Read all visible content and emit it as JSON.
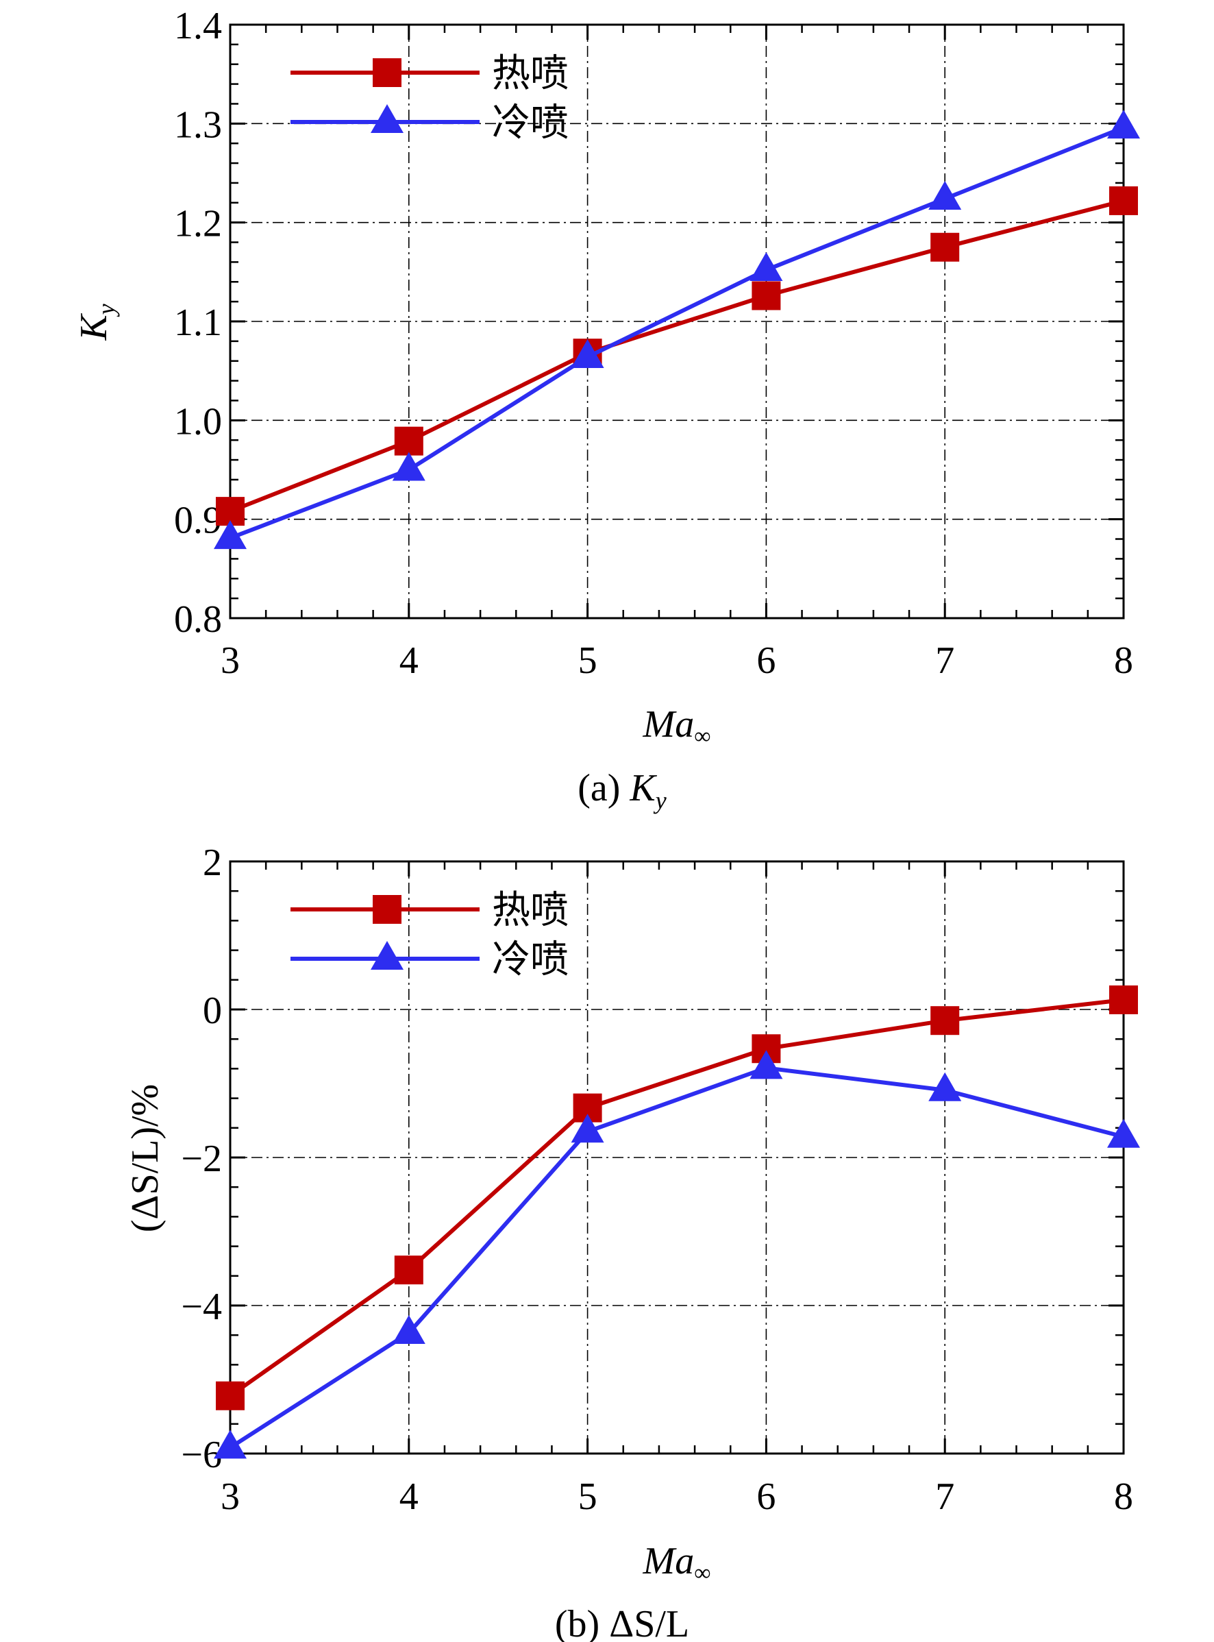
{
  "chart_data": [
    {
      "type": "line",
      "panel_label": "(a) ",
      "panel_symbol": "K",
      "panel_symbol_sub": "y",
      "xlabel_main": "Ma",
      "xlabel_sub": "∞",
      "ylabel_main": "K",
      "ylabel_sub": "y",
      "x": [
        3,
        4,
        5,
        6,
        7,
        8
      ],
      "xlim": [
        3,
        8
      ],
      "ylim": [
        0.8,
        1.4
      ],
      "x_ticks": [
        3,
        4,
        5,
        6,
        7,
        8
      ],
      "y_ticks": [
        0.8,
        0.9,
        1.0,
        1.1,
        1.2,
        1.3,
        1.4
      ],
      "y_tick_labels": [
        "0.8",
        "0.9",
        "1.0",
        "1.1",
        "1.2",
        "1.3",
        "1.4"
      ],
      "grid": true,
      "legend_position": "top-left",
      "series": [
        {
          "name": "热喷",
          "color": "#c00000",
          "marker": "square",
          "values": [
            0.908,
            0.979,
            1.068,
            1.126,
            1.175,
            1.222
          ]
        },
        {
          "name": "冷喷",
          "color": "#2d2df0",
          "marker": "triangle",
          "values": [
            0.881,
            0.95,
            1.064,
            1.152,
            1.224,
            1.296
          ]
        }
      ]
    },
    {
      "type": "line",
      "panel_label": "(b) ",
      "panel_symbol": "ΔS/L",
      "xlabel_main": "Ma",
      "xlabel_sub": "∞",
      "ylabel_text": "(ΔS/L)/%",
      "x": [
        3,
        4,
        5,
        6,
        7,
        8
      ],
      "xlim": [
        3,
        8
      ],
      "ylim": [
        -6,
        2
      ],
      "x_ticks": [
        3,
        4,
        5,
        6,
        7,
        8
      ],
      "y_ticks": [
        -6,
        -4,
        -2,
        0,
        2
      ],
      "y_tick_labels": [
        "−6",
        "−4",
        "−2",
        "0",
        "2"
      ],
      "grid": true,
      "legend_position": "top-left",
      "series": [
        {
          "name": "热喷",
          "color": "#c00000",
          "marker": "square",
          "values": [
            -5.22,
            -3.52,
            -1.33,
            -0.53,
            -0.15,
            0.13
          ]
        },
        {
          "name": "冷喷",
          "color": "#2d2df0",
          "marker": "triangle",
          "values": [
            -5.92,
            -4.37,
            -1.65,
            -0.79,
            -1.09,
            -1.72
          ]
        }
      ]
    }
  ]
}
